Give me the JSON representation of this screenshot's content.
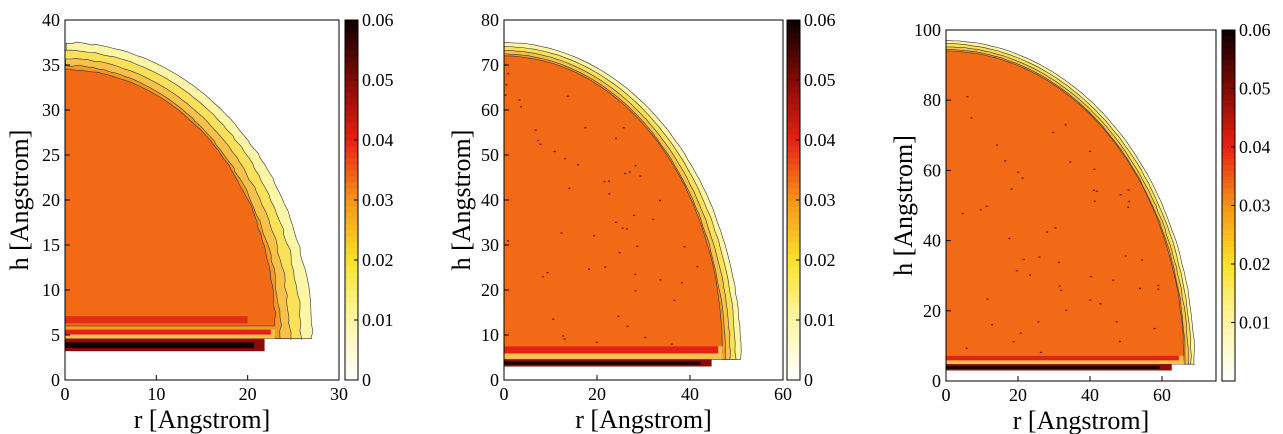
{
  "chart_data": [
    {
      "type": "heatmap",
      "title": "",
      "xlabel": "r [Angstrom]",
      "ylabel": "h [Angstrom]",
      "xlim": [
        0,
        30
      ],
      "ylim": [
        0,
        40
      ],
      "xticks": [
        0,
        10,
        20,
        30
      ],
      "yticks": [
        0,
        5,
        10,
        15,
        20,
        25,
        30,
        35,
        40
      ],
      "grid": false,
      "colorbar": {
        "range": [
          0,
          0.06
        ],
        "ticks": [
          "0",
          "0.01",
          "0.02",
          "0.03",
          "0.04",
          "0.05",
          "0.06"
        ]
      },
      "contours": {
        "outer_radius_at_base": 27,
        "outer_top_height": 37.5,
        "bulk_radius_at_base": 23,
        "bulk_top_height": 34.5,
        "bulk_base_height": 6,
        "bulk_density": 0.033,
        "dense_layer": {
          "h_min": 3.2,
          "h_max": 4.6,
          "density": 0.06
        },
        "red_layer": {
          "h_min": 4.6,
          "h_max": 5.6,
          "density": 0.045
        },
        "red_streak": {
          "h_min": 6.3,
          "h_max": 7.1,
          "r_max": 20,
          "density": 0.04
        }
      }
    },
    {
      "type": "heatmap",
      "title": "",
      "xlabel": "r [Angstrom]",
      "ylabel": "h [Angstrom]",
      "xlim": [
        0,
        60
      ],
      "ylim": [
        0,
        80
      ],
      "xticks": [
        0,
        20,
        40,
        60
      ],
      "yticks": [
        0,
        10,
        20,
        30,
        40,
        50,
        60,
        70,
        80
      ],
      "grid": false,
      "colorbar": {
        "range": [
          0,
          0.06
        ],
        "ticks": [
          "0",
          "0.01",
          "0.02",
          "0.03",
          "0.04",
          "0.05",
          "0.06"
        ]
      },
      "contours": {
        "outer_radius_at_base": 51,
        "outer_top_height": 75,
        "bulk_radius_at_base": 47,
        "bulk_top_height": 72,
        "bulk_base_height": 6,
        "bulk_density": 0.033,
        "dense_layer": {
          "h_min": 3,
          "h_max": 4.6,
          "density": 0.06
        },
        "red_layer": {
          "h_min": 4.6,
          "h_max": 7.5,
          "density": 0.045
        }
      }
    },
    {
      "type": "heatmap",
      "title": "",
      "xlabel": "r [Angstrom]",
      "ylabel": "h [Angstrom]",
      "xlim": [
        0,
        75
      ],
      "ylim": [
        0,
        100
      ],
      "xticks": [
        0,
        20,
        40,
        60
      ],
      "yticks": [
        0,
        20,
        40,
        60,
        80,
        100
      ],
      "grid": false,
      "colorbar": {
        "range": [
          0,
          0.06
        ],
        "ticks": [
          "0.01",
          "0.02",
          "0.03",
          "0.04",
          "0.05",
          "0.06"
        ]
      },
      "contours": {
        "outer_radius_at_base": 69,
        "outer_top_height": 97,
        "bulk_radius_at_base": 66,
        "bulk_top_height": 94,
        "bulk_base_height": 6,
        "bulk_density": 0.033,
        "dense_layer": {
          "h_min": 3,
          "h_max": 4.8,
          "density": 0.06
        },
        "red_layer": {
          "h_min": 4.8,
          "h_max": 7.2,
          "density": 0.045
        }
      }
    }
  ],
  "colors": {
    "bulk": "#f26a16",
    "yellow_light": "#fdf6a6",
    "yellow": "#fbe05a",
    "orange_light": "#f8c24a",
    "orange": "#f49a24",
    "red": "#e32119",
    "dark_red": "#8a0c05",
    "black": "#140000"
  }
}
